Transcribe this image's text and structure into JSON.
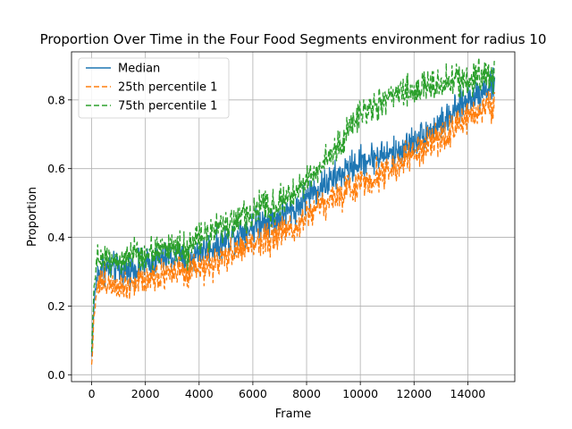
{
  "chart_data": {
    "type": "line",
    "title": "Proportion Over Time in the Four Food Segments environment for radius 10",
    "xlabel": "Frame",
    "ylabel": "Proportion",
    "xlim": [
      -750,
      15750
    ],
    "ylim": [
      -0.02,
      0.94
    ],
    "x_ticks": [
      0,
      2000,
      4000,
      6000,
      8000,
      10000,
      12000,
      14000
    ],
    "y_ticks": [
      0.0,
      0.2,
      0.4,
      0.6,
      0.8
    ],
    "x_tick_labels": [
      "0",
      "2000",
      "4000",
      "6000",
      "8000",
      "10000",
      "12000",
      "14000"
    ],
    "y_tick_labels": [
      "0.0",
      "0.2",
      "0.4",
      "0.6",
      "0.8"
    ],
    "grid": true,
    "legend_position": "upper-left",
    "noise": 0.035,
    "series": [
      {
        "name": "Median",
        "color": "#1f77b4",
        "dash": "solid",
        "x": [
          0,
          100,
          200,
          400,
          800,
          1200,
          1600,
          2000,
          2400,
          2800,
          3200,
          3600,
          4000,
          4400,
          4800,
          5200,
          5600,
          6000,
          6400,
          6800,
          7200,
          7600,
          8000,
          8400,
          8800,
          9200,
          9600,
          10000,
          10400,
          10800,
          11200,
          11600,
          12000,
          12400,
          12800,
          13200,
          13600,
          14000,
          14400,
          14800,
          15000
        ],
        "values": [
          0.05,
          0.22,
          0.29,
          0.31,
          0.31,
          0.3,
          0.31,
          0.32,
          0.33,
          0.34,
          0.34,
          0.33,
          0.36,
          0.37,
          0.38,
          0.4,
          0.42,
          0.43,
          0.45,
          0.45,
          0.47,
          0.48,
          0.52,
          0.54,
          0.56,
          0.58,
          0.6,
          0.62,
          0.63,
          0.64,
          0.64,
          0.66,
          0.68,
          0.7,
          0.72,
          0.74,
          0.77,
          0.8,
          0.82,
          0.84,
          0.84
        ]
      },
      {
        "name": "25th percentile 1",
        "color": "#ff7f0e",
        "dash": "6,3",
        "x": [
          0,
          100,
          200,
          400,
          800,
          1200,
          1600,
          2000,
          2400,
          2800,
          3200,
          3600,
          4000,
          4400,
          4800,
          5200,
          5600,
          6000,
          6400,
          6800,
          7200,
          7600,
          8000,
          8400,
          8800,
          9200,
          9600,
          10000,
          10400,
          10800,
          11200,
          11600,
          12000,
          12400,
          12800,
          13200,
          13600,
          14000,
          14400,
          14800,
          15000
        ],
        "values": [
          0.03,
          0.18,
          0.26,
          0.27,
          0.27,
          0.26,
          0.27,
          0.28,
          0.29,
          0.3,
          0.3,
          0.29,
          0.31,
          0.32,
          0.33,
          0.35,
          0.37,
          0.38,
          0.4,
          0.4,
          0.42,
          0.43,
          0.47,
          0.49,
          0.51,
          0.52,
          0.54,
          0.56,
          0.57,
          0.59,
          0.6,
          0.62,
          0.64,
          0.66,
          0.68,
          0.7,
          0.72,
          0.75,
          0.77,
          0.79,
          0.79
        ]
      },
      {
        "name": "75th percentile 1",
        "color": "#2ca02c",
        "dash": "6,3",
        "x": [
          0,
          100,
          200,
          400,
          800,
          1200,
          1600,
          2000,
          2400,
          2800,
          3200,
          3600,
          4000,
          4400,
          4800,
          5200,
          5600,
          6000,
          6400,
          6800,
          7200,
          7600,
          8000,
          8400,
          8800,
          9200,
          9600,
          10000,
          10400,
          10800,
          11200,
          11600,
          12000,
          12400,
          12800,
          13200,
          13600,
          14000,
          14400,
          14800,
          15000
        ],
        "values": [
          0.07,
          0.27,
          0.33,
          0.34,
          0.34,
          0.33,
          0.35,
          0.35,
          0.36,
          0.37,
          0.37,
          0.36,
          0.4,
          0.41,
          0.42,
          0.44,
          0.46,
          0.47,
          0.49,
          0.49,
          0.51,
          0.53,
          0.57,
          0.6,
          0.63,
          0.66,
          0.72,
          0.76,
          0.78,
          0.79,
          0.81,
          0.82,
          0.83,
          0.84,
          0.84,
          0.85,
          0.86,
          0.86,
          0.87,
          0.87,
          0.87
        ]
      }
    ]
  }
}
